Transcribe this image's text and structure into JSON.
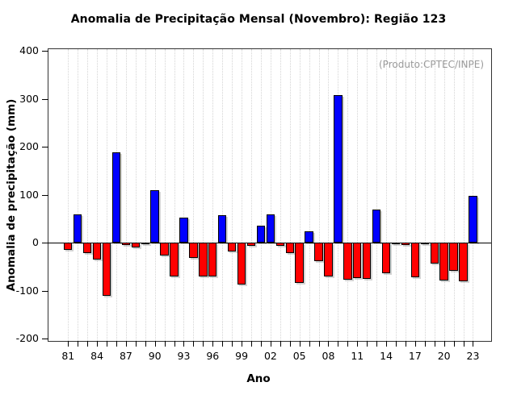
{
  "title": "Anomalia de Precipitação Mensal (Novembro): Região 123",
  "annotation": "(Produto:CPTEC/INPE)",
  "colors": {
    "positive_bar": "#0000ff",
    "negative_bar": "#ff0000",
    "bar_border": "#000000",
    "annotation_text": "#9a9a9a",
    "gridline": "#d4d4d4",
    "axis": "#000000"
  },
  "chart_data": {
    "type": "bar",
    "title": "Anomalia de Precipitação Mensal (Novembro): Região 123",
    "xlabel": "Ano",
    "ylabel": "Anomalia de precipitação (mm)",
    "ylim": [
      -200,
      400
    ],
    "yticks": [
      400,
      300,
      200,
      100,
      0,
      -100,
      -200
    ],
    "grid": "vertical-dotted",
    "legend_position": "none",
    "annotation": "(Produto:CPTEC/INPE)",
    "categories": [
      "81",
      "82",
      "83",
      "84",
      "85",
      "86",
      "87",
      "88",
      "89",
      "90",
      "91",
      "92",
      "93",
      "94",
      "95",
      "96",
      "97",
      "98",
      "99",
      "00",
      "01",
      "02",
      "03",
      "04",
      "05",
      "06",
      "07",
      "08",
      "09",
      "10",
      "11",
      "12",
      "13",
      "14",
      "15",
      "16",
      "17",
      "18",
      "19",
      "20",
      "21",
      "22",
      "23"
    ],
    "x_tick_labels": [
      "81",
      "84",
      "87",
      "90",
      "93",
      "96",
      "99",
      "02",
      "05",
      "08",
      "11",
      "14",
      "17",
      "20",
      "23"
    ],
    "values": [
      -15,
      60,
      -22,
      -35,
      -110,
      188,
      -5,
      -10,
      -3,
      109,
      -26,
      -70,
      53,
      -31,
      -70,
      -70,
      58,
      -18,
      -87,
      -6,
      36,
      60,
      -7,
      -22,
      -83,
      24,
      -38,
      -71,
      308,
      -77,
      -74,
      -76,
      70,
      -63,
      -3,
      -5,
      -72,
      -2,
      -44,
      -79,
      -58,
      -81,
      98
    ]
  }
}
